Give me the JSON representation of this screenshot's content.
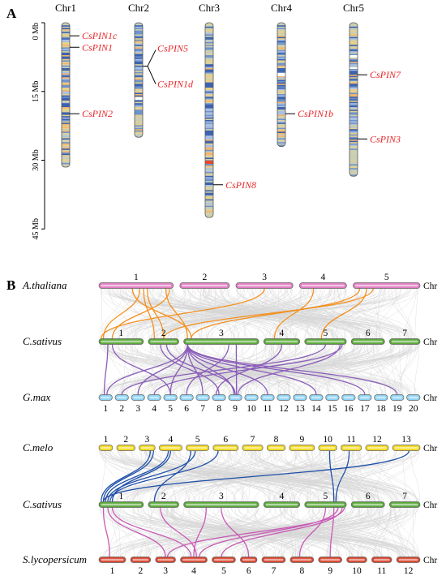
{
  "panelA": {
    "letter": "A",
    "scale_labels": [
      "0 Mb",
      "15 Mb",
      "30 Mb",
      "45 Mb"
    ],
    "chromosomes": [
      {
        "name": "Chr1",
        "length_mb": 31.5,
        "genes": [
          {
            "name": "CsPIN1c",
            "pos_mb": 2.5
          },
          {
            "name": "CsPIN1",
            "pos_mb": 5.0
          },
          {
            "name": "CsPIN2",
            "pos_mb": 19.5
          }
        ]
      },
      {
        "name": "Chr2",
        "length_mb": 25.0,
        "genes": [
          {
            "name": "CsPIN5",
            "pos_mb": 7.0
          },
          {
            "name": "CsPIN1d",
            "pos_mb": 7.0
          }
        ]
      },
      {
        "name": "Chr3",
        "length_mb": 42.5,
        "genes": [
          {
            "name": "CsPIN8",
            "pos_mb": 35.0
          }
        ]
      },
      {
        "name": "Chr4",
        "length_mb": 27.0,
        "genes": [
          {
            "name": "CsPIN1b",
            "pos_mb": 19.5
          }
        ]
      },
      {
        "name": "Chr5",
        "length_mb": 33.5,
        "genes": [
          {
            "name": "CsPIN7",
            "pos_mb": 11.0
          },
          {
            "name": "CsPIN3",
            "pos_mb": 25.0
          }
        ]
      }
    ]
  },
  "panelB": {
    "letter": "B",
    "chr_word": "Chr",
    "tracks": [
      {
        "species": "A.thaliana",
        "color": "#e07ec2",
        "labels": [
          "1",
          "2",
          "3",
          "4",
          "5"
        ]
      },
      {
        "species": "C.sativus",
        "color": "#5aa83a",
        "labels": [
          "1",
          "2",
          "3",
          "4",
          "5",
          "6",
          "7"
        ]
      },
      {
        "species": "G.max",
        "color": "#8ed2f2",
        "labels": [
          "1",
          "2",
          "3",
          "4",
          "5",
          "6",
          "7",
          "8",
          "9",
          "10",
          "11",
          "12",
          "13",
          "14",
          "15",
          "16",
          "17",
          "18",
          "19",
          "20"
        ]
      },
      {
        "species": "C.melo",
        "color": "#f2d81c",
        "labels": [
          "1",
          "2",
          "3",
          "4",
          "5",
          "6",
          "7",
          "8",
          "9",
          "10",
          "11",
          "12",
          "13"
        ]
      },
      {
        "species": "C.sativus",
        "color": "#5aa83a",
        "labels": [
          "1",
          "2",
          "3",
          "4",
          "5",
          "6",
          "7"
        ]
      },
      {
        "species": "S.lycopersicum",
        "color": "#d8452e",
        "labels": [
          "1",
          "2",
          "3",
          "4",
          "5",
          "6",
          "7",
          "8",
          "9",
          "10",
          "11",
          "12"
        ]
      }
    ],
    "link_colors": {
      "thaliana_sativus": "#f4901e",
      "sativus_gmax": "#8a5cb8",
      "melo_sativus": "#1f4fa8",
      "sativus_slyco": "#c85ab4",
      "background": "#d6d6d6"
    }
  }
}
